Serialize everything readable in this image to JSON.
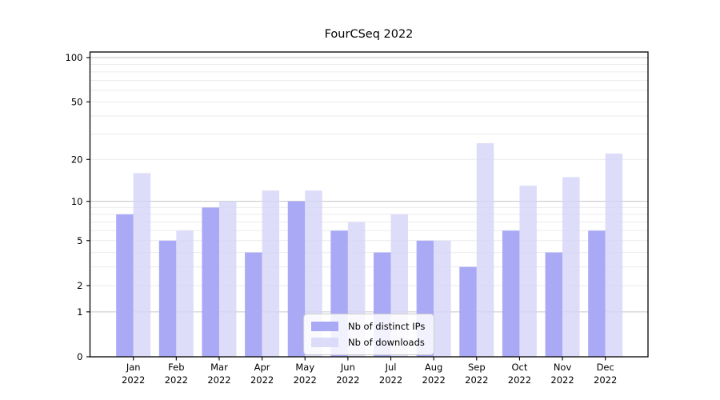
{
  "chart_data": {
    "type": "bar",
    "title": "FourCSeq 2022",
    "categories": [
      "Jan",
      "Feb",
      "Mar",
      "Apr",
      "May",
      "Jun",
      "Jul",
      "Aug",
      "Sep",
      "Oct",
      "Nov",
      "Dec"
    ],
    "category_year": "2022",
    "series": [
      {
        "name": "Nb of distinct IPs",
        "color": "#a9a9f6",
        "opacity": 1.0,
        "values": [
          8,
          5,
          9,
          4,
          10,
          6,
          4,
          5,
          3,
          6,
          4,
          6
        ]
      },
      {
        "name": "Nb of downloads",
        "color": "#d5d5f7",
        "opacity": 0.8,
        "values": [
          16,
          6,
          10,
          12,
          12,
          7,
          8,
          5,
          26,
          13,
          15,
          22
        ]
      }
    ],
    "y_axis": {
      "scale": "log1p",
      "tick_labels": [
        "0",
        "1",
        "2",
        "5",
        "10",
        "20",
        "50",
        "100"
      ],
      "tick_values": [
        0,
        1,
        2,
        5,
        10,
        20,
        50,
        100
      ],
      "major_gridlines": [
        1,
        10,
        100
      ],
      "minor_gridlines": [
        2,
        3,
        4,
        5,
        6,
        7,
        8,
        9,
        20,
        30,
        40,
        50,
        60,
        70,
        80,
        90
      ],
      "top_value": 110
    },
    "legend_position": "bottom-center",
    "grid": true,
    "colors": {
      "major_grid": "#c6c6c6",
      "minor_grid": "#ebebeb",
      "axis": "#000000",
      "text": "#000000",
      "background": "#ffffff"
    }
  }
}
